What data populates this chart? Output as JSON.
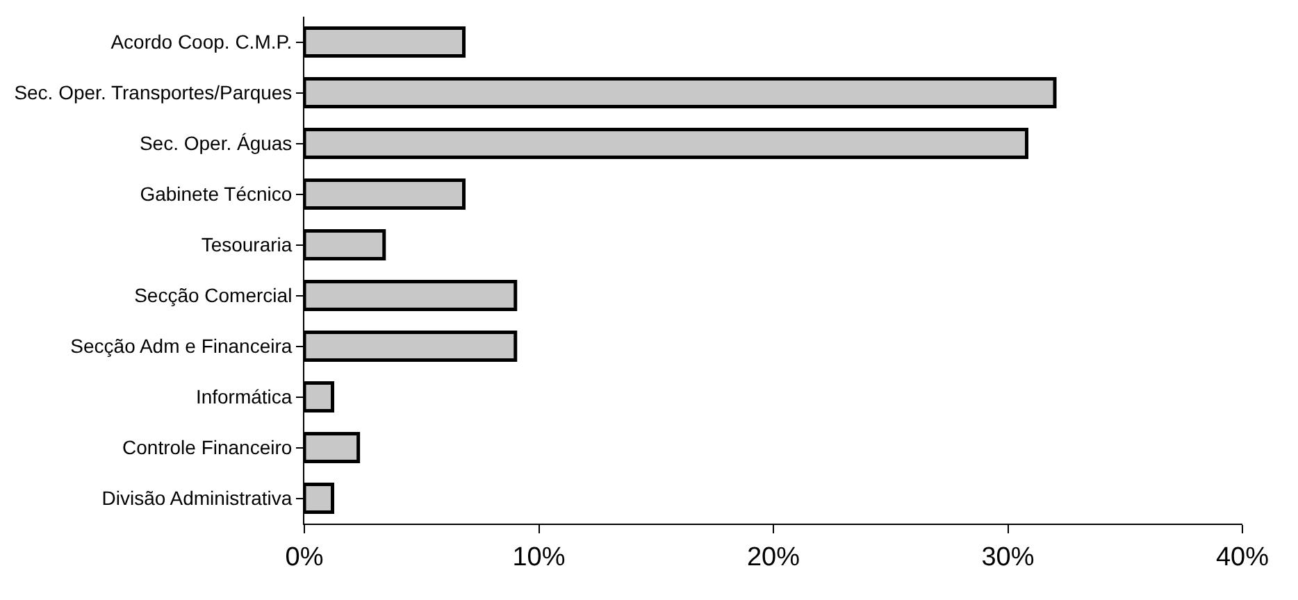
{
  "chart_data": {
    "type": "bar",
    "orientation": "horizontal",
    "categories": [
      "Acordo Coop. C.M.P.",
      "Sec. Oper. Transportes/Parques",
      "Sec. Oper. Águas",
      "Gabinete Técnico",
      "Tesouraria",
      "Secção Comercial",
      "Secção Adm e Financeira",
      "Informática",
      "Controle Financeiro",
      "Divisão Administrativa"
    ],
    "values": [
      6.8,
      32.0,
      30.8,
      6.8,
      3.4,
      9.0,
      9.0,
      1.2,
      2.3,
      1.2
    ],
    "color": "#c8c8c8",
    "xlim": [
      0,
      40
    ],
    "xticks": [
      {
        "value": 0,
        "label": "0%"
      },
      {
        "value": 10,
        "label": "10%"
      },
      {
        "value": 20,
        "label": "20%"
      },
      {
        "value": 30,
        "label": "30%"
      },
      {
        "value": 40,
        "label": "40%"
      }
    ],
    "grid": false
  }
}
